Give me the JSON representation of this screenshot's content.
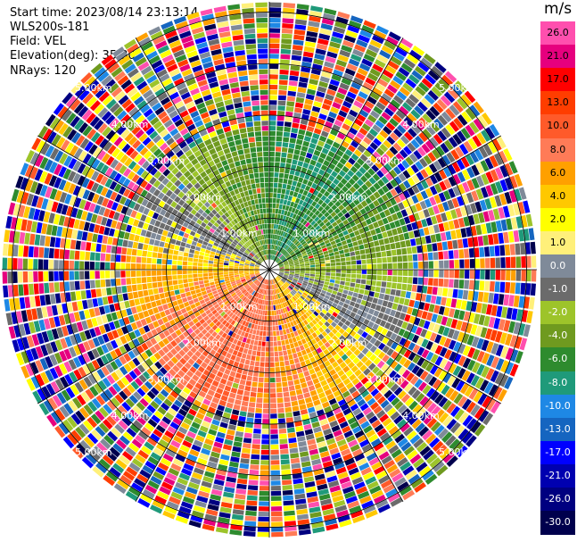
{
  "info": {
    "start_time": "Start time: 2023/08/14 23:13:14",
    "instrument": "WLS200s-181",
    "field": "Field: VEL",
    "elevation": "Elevation(deg): 35.30",
    "nrays": "NRays: 120"
  },
  "chart_data": {
    "type": "heatmap",
    "projection": "polar (PPI)",
    "field": "VEL",
    "units": "m/s",
    "n_rays": 120,
    "range_ring_labels": [
      "1.00km",
      "2.00km",
      "3.00km",
      "4.00km",
      "5.00km"
    ],
    "range_rings_km": [
      1,
      2,
      3,
      4,
      5
    ],
    "max_range_km": 5.2,
    "colorbar": {
      "title": "m/s",
      "tick_labels": [
        "26.0",
        "21.0",
        "17.0",
        "13.0",
        "10.0",
        "8.0",
        "6.0",
        "4.0",
        "2.0",
        "1.0",
        "0.0",
        "-1.0",
        "-2.0",
        "-4.0",
        "-6.0",
        "-8.0",
        "-10.0",
        "-13.0",
        "-17.0",
        "-21.0",
        "-26.0",
        "-30.0"
      ],
      "colors": [
        "#ff4fae",
        "#e6007e",
        "#ff0000",
        "#ff3d00",
        "#ff5a2a",
        "#ff7b57",
        "#ffa000",
        "#ffc800",
        "#ffff00",
        "#fff07a",
        "#7f8a99",
        "#6b6b6b",
        "#9dc42a",
        "#6f9a1f",
        "#2e8b2e",
        "#1f9a7a",
        "#1e88e5",
        "#1565c0",
        "#0000ff",
        "#0000b0",
        "#000080",
        "#00004d"
      ]
    }
  }
}
